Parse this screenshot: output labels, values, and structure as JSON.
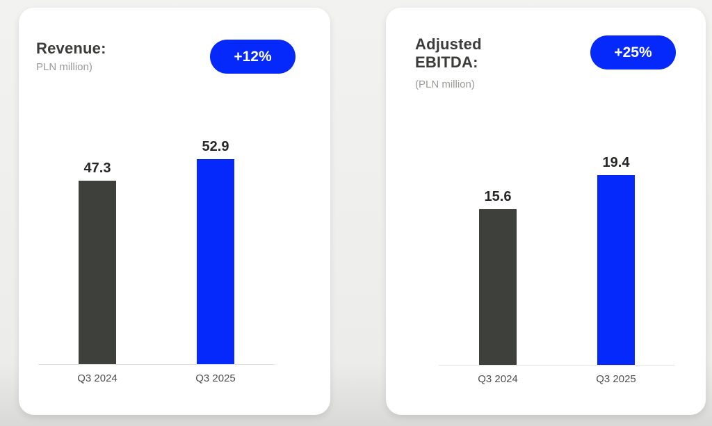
{
  "page": {
    "background_top": "#f2f2f1",
    "background_bottom": "#d9d9d8"
  },
  "colors": {
    "accent_blue": "#0629fb",
    "bar_dark": "#3e403b",
    "card_background": "#ffffff",
    "title_text": "#3b3b39",
    "subtitle_text": "#9a9a97",
    "value_label_text": "#262624",
    "category_text": "#4e4e4e",
    "badge_text": "#ffffff",
    "baseline": "#e3e3e1"
  },
  "cards": [
    {
      "title": "Revenue:",
      "subtitle": "PLN million)",
      "badge": "+12%"
    },
    {
      "title": "Adjusted EBITDA:",
      "subtitle": "(PLN million)",
      "badge": "+25%"
    }
  ],
  "chart_data": [
    {
      "type": "bar",
      "title": "Revenue:",
      "subtitle": "PLN million)",
      "categories": [
        "Q3 2024",
        "Q3 2025"
      ],
      "values": [
        47.3,
        52.9
      ],
      "value_labels": [
        "47.3",
        "52.9"
      ],
      "bar_colors": [
        "#3e403b",
        "#0629fb"
      ],
      "change_badge": "+12%",
      "xlabel": "",
      "ylabel": "",
      "ylim": [
        0,
        60
      ],
      "grid": false,
      "legend": false
    },
    {
      "type": "bar",
      "title": "Adjusted EBITDA:",
      "subtitle": "(PLN million)",
      "categories": [
        "Q3 2024",
        "Q3 2025"
      ],
      "values": [
        15.6,
        19.4
      ],
      "value_labels": [
        "15.6",
        "19.4"
      ],
      "bar_colors": [
        "#3e403b",
        "#0629fb"
      ],
      "change_badge": "+25%",
      "xlabel": "",
      "ylabel": "",
      "ylim": [
        0,
        21
      ],
      "grid": false,
      "legend": false
    }
  ]
}
